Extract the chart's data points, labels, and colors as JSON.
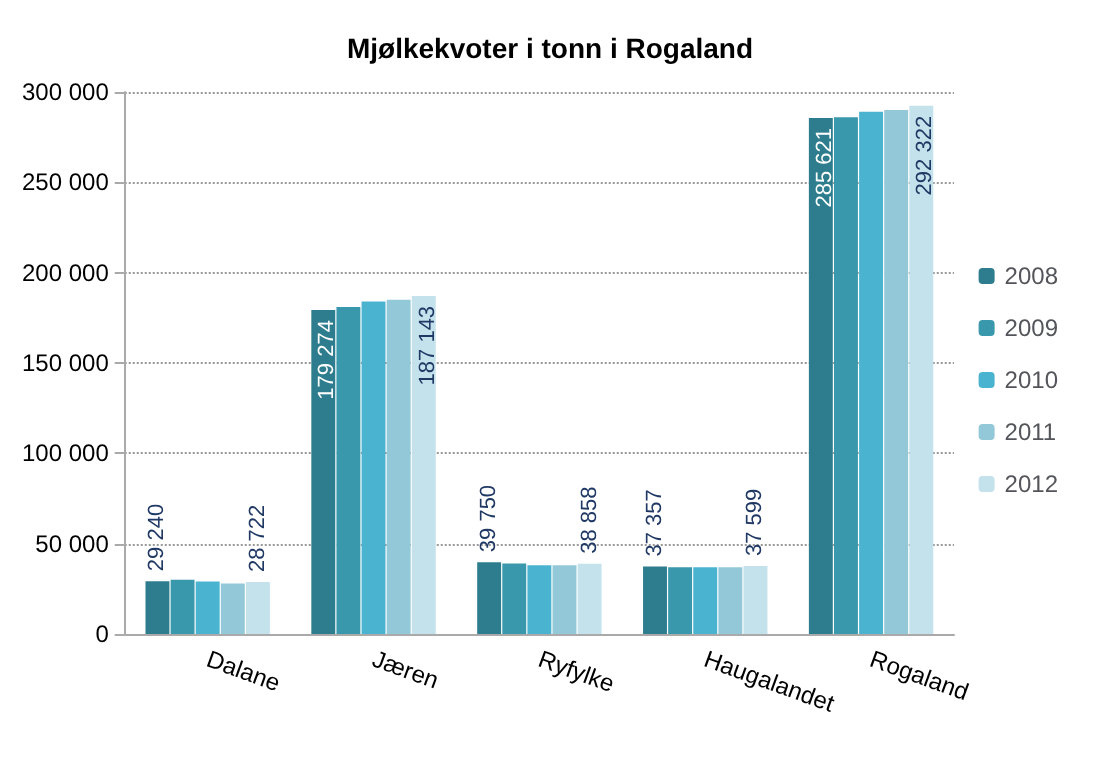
{
  "chart_data": {
    "type": "bar",
    "title": "Mjølkekvoter i tonn i Rogaland",
    "categories": [
      "Dalane",
      "Jæren",
      "Ryfylke",
      "Haugalandet",
      "Rogaland"
    ],
    "series": [
      {
        "name": "2008",
        "color": "#2e7d8e",
        "values": [
          29240,
          179274,
          39750,
          37357,
          285621
        ],
        "value_labels": [
          "29 240",
          "179 274",
          "39 750",
          "37 357",
          "285 621"
        ]
      },
      {
        "name": "2009",
        "color": "#3a98ad",
        "values": [
          30000,
          181000,
          39000,
          37000,
          286000
        ]
      },
      {
        "name": "2010",
        "color": "#4ab3cf",
        "values": [
          29000,
          184000,
          38000,
          37000,
          289000
        ]
      },
      {
        "name": "2011",
        "color": "#92c8d8",
        "values": [
          28000,
          185000,
          38000,
          37000,
          290000
        ]
      },
      {
        "name": "2012",
        "color": "#c4e2ec",
        "values": [
          28722,
          187143,
          38858,
          37599,
          292322
        ],
        "value_labels": [
          "28 722",
          "187 143",
          "38 858",
          "37 599",
          "292 322"
        ]
      }
    ],
    "ylim": [
      0,
      300000
    ],
    "yticks": [
      0,
      {
        "value": 50000,
        "label": "50 000"
      },
      {
        "value": 100000,
        "label": "100 000"
      },
      {
        "value": 150000,
        "label": "150 000"
      },
      {
        "value": 200000,
        "label": "200 000"
      },
      {
        "value": 250000,
        "label": "250 000"
      },
      {
        "value": 300000,
        "label": "300 000"
      }
    ],
    "grid": "y",
    "legend": "right"
  }
}
